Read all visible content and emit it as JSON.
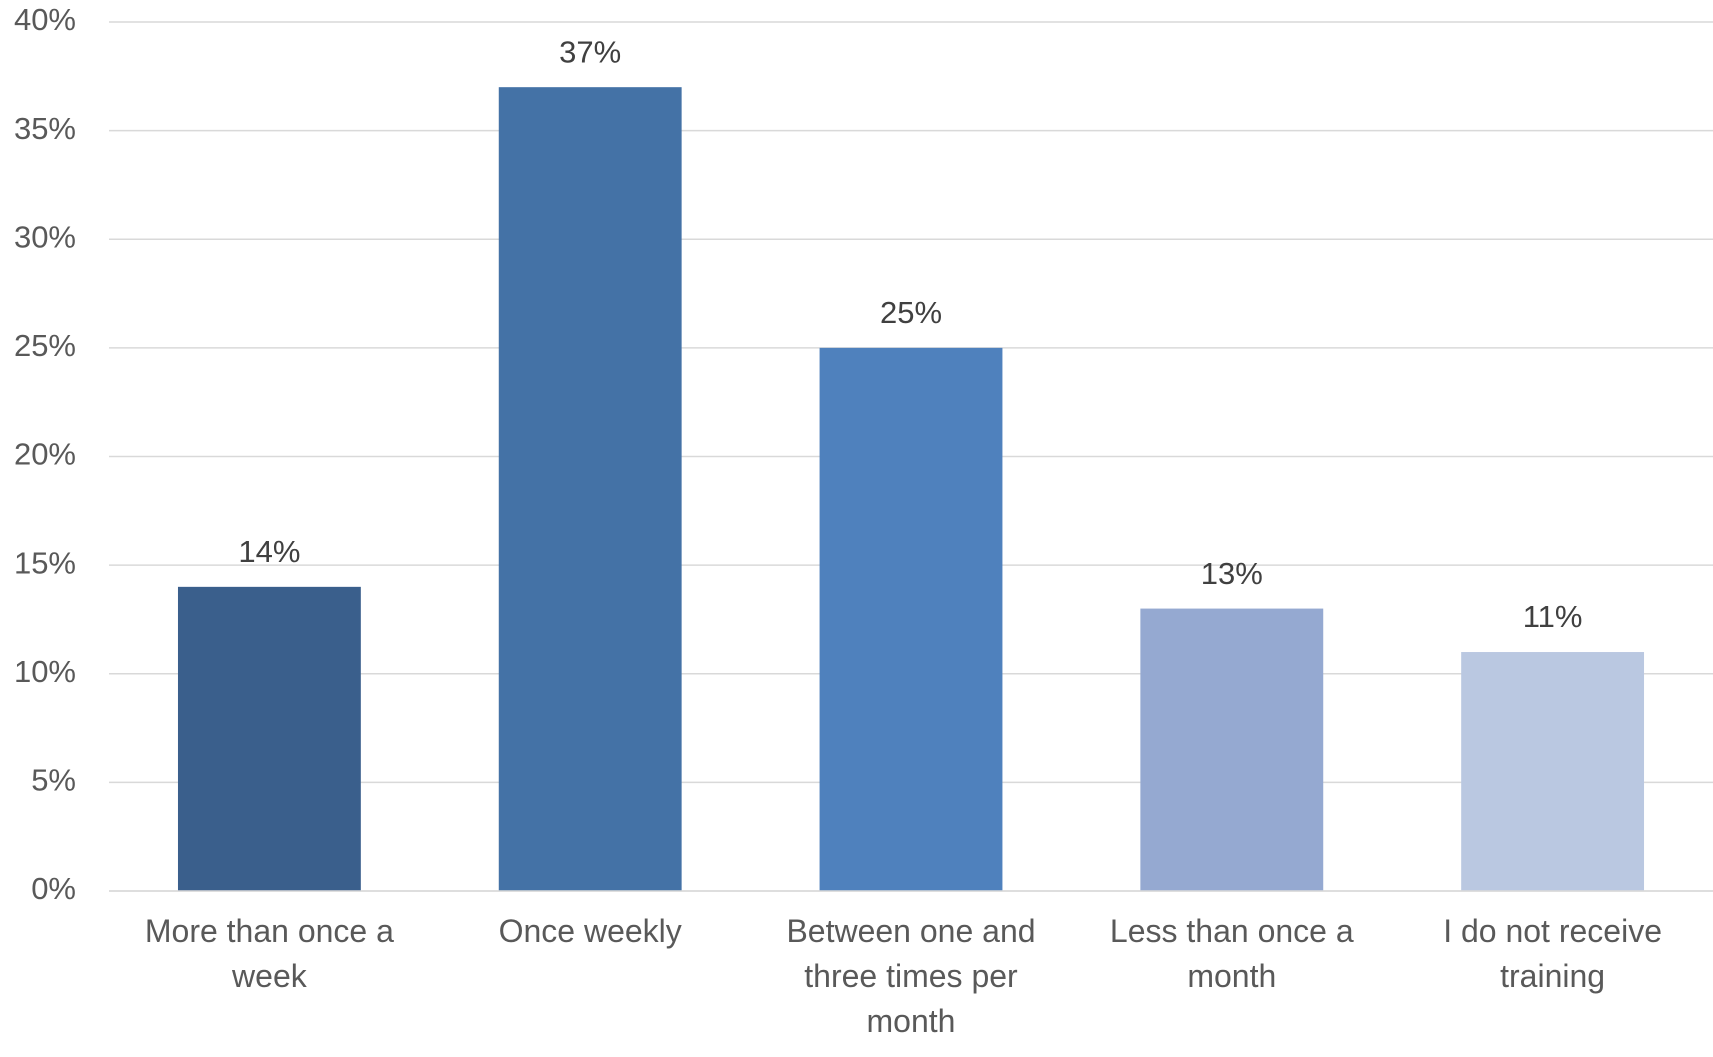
{
  "chart_data": {
    "type": "bar",
    "categories": [
      "More than once a week",
      "Once weekly",
      "Between one and three times per month",
      "Less than once a month",
      "I do not receive training"
    ],
    "values": [
      14,
      37,
      25,
      13,
      11
    ],
    "value_labels": [
      "14%",
      "37%",
      "25%",
      "13%",
      "11%"
    ],
    "colors": [
      "#3a5f8c",
      "#4472a6",
      "#4f81bd",
      "#95a9d1",
      "#bac8e1"
    ],
    "ylim": [
      0,
      40
    ],
    "yticks": [
      {
        "value": 0,
        "label": "0%"
      },
      {
        "value": 5,
        "label": "5%"
      },
      {
        "value": 10,
        "label": "10%"
      },
      {
        "value": 15,
        "label": "15%"
      },
      {
        "value": 20,
        "label": "20%"
      },
      {
        "value": 25,
        "label": "25%"
      },
      {
        "value": 30,
        "label": "30%"
      },
      {
        "value": 35,
        "label": "35%"
      },
      {
        "value": 40,
        "label": "40%"
      }
    ],
    "grid": true
  }
}
